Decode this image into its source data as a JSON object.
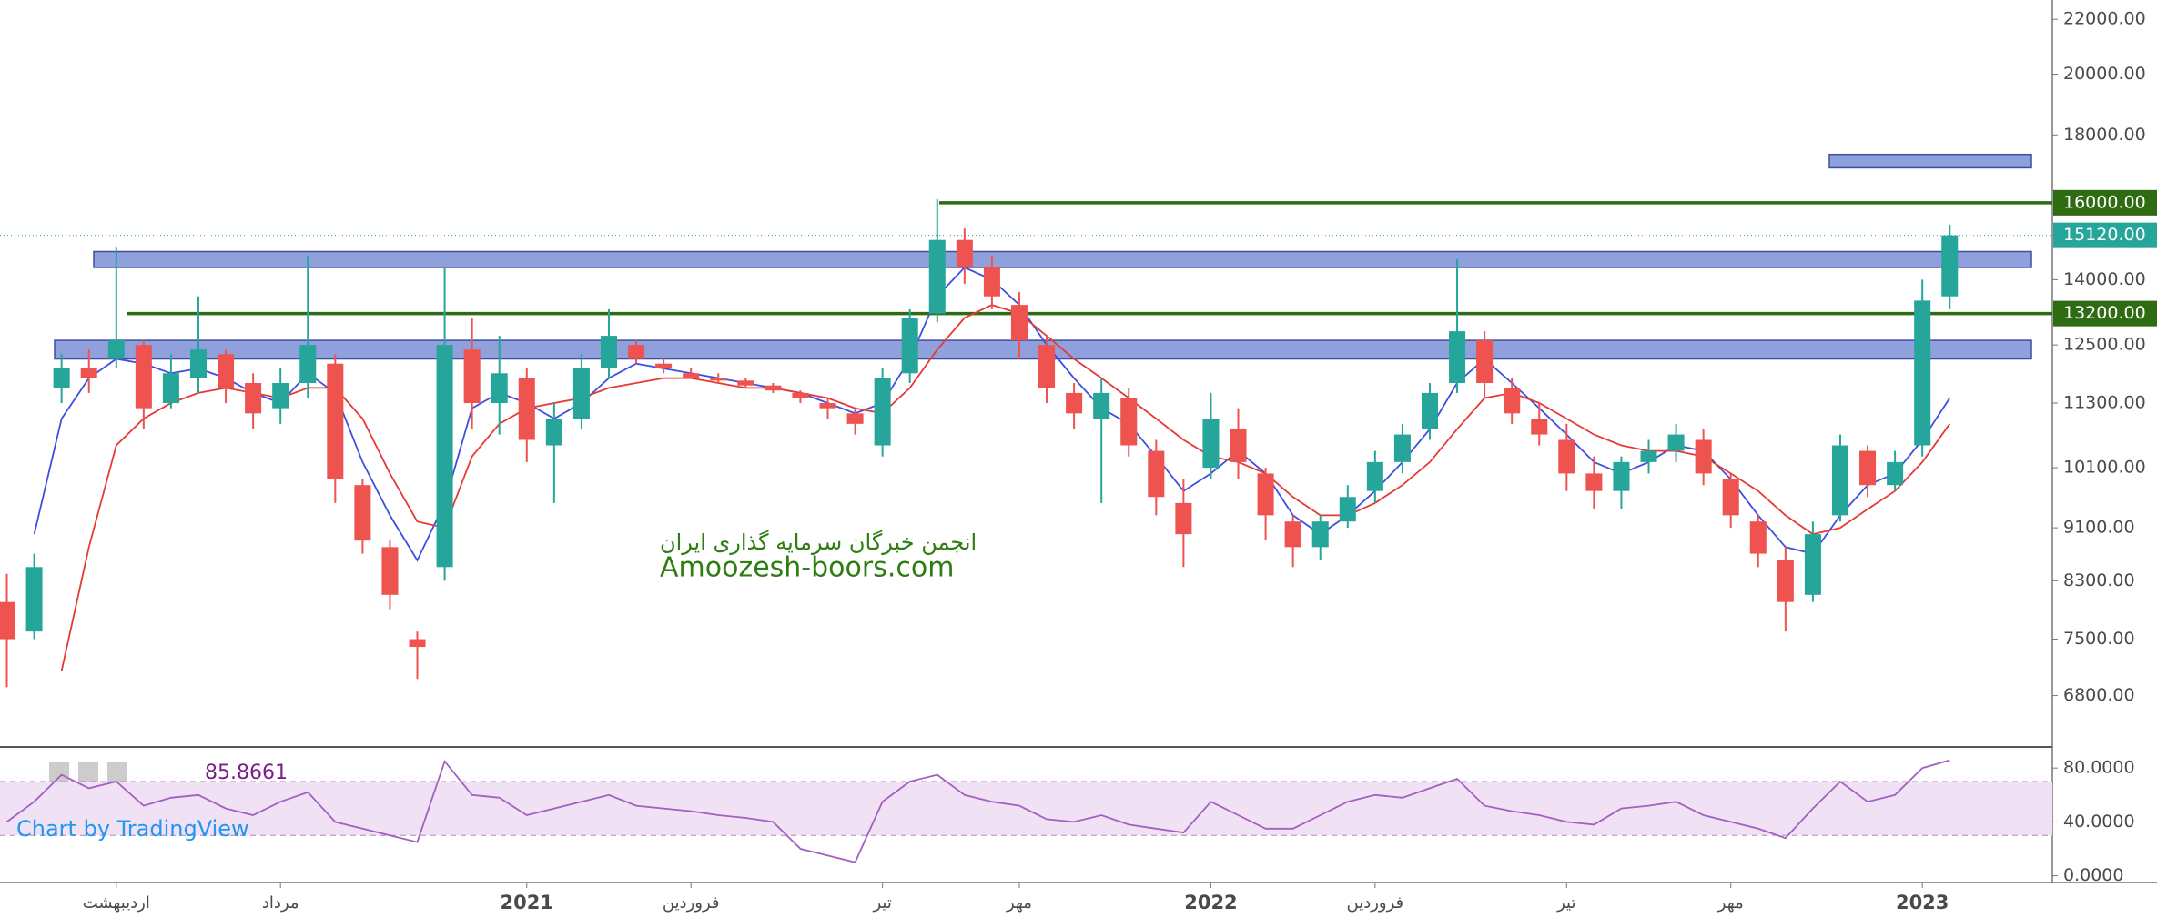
{
  "chart_data": [
    {
      "type": "candlestick",
      "categories": [
        null,
        null,
        null,
        null,
        "اردیبهشت",
        null,
        null,
        null,
        null,
        null,
        "مرداد",
        null,
        null,
        null,
        null,
        null,
        null,
        null,
        null,
        "2021",
        null,
        null,
        null,
        null,
        null,
        "فروردین",
        null,
        null,
        null,
        null,
        null,
        null,
        "تیر",
        null,
        null,
        null,
        null,
        "مهر",
        null,
        null,
        null,
        null,
        null,
        null,
        "2022",
        null,
        null,
        null,
        null,
        null,
        "فروردین",
        null,
        null,
        null,
        null,
        null,
        null,
        "تیر",
        null,
        null,
        null,
        null,
        null,
        "مهر",
        null,
        null,
        null,
        null,
        null,
        null,
        "2023",
        null,
        null,
        null,
        null
      ],
      "open": [
        8000,
        7600,
        11600,
        12000,
        12200,
        12500,
        11300,
        11800,
        12300,
        11700,
        11200,
        11700,
        12100,
        9800,
        8800,
        7500,
        8500,
        12400,
        11300,
        11800,
        10500,
        11000,
        12000,
        12500,
        12100,
        11900,
        11800,
        11750,
        11650,
        11500,
        11300,
        11100,
        10500,
        11900,
        13200,
        15000,
        14300,
        13400,
        12500,
        11500,
        11000,
        11400,
        10400,
        9500,
        10100,
        10800,
        10000,
        9200,
        8800,
        9200,
        9700,
        10200,
        10800,
        11700,
        12600,
        11600,
        11000,
        10600,
        10000,
        9700,
        10200,
        10400,
        10600,
        9900,
        9200,
        8600,
        8100,
        9300,
        10400,
        9800,
        10500,
        13600,
        null,
        null,
        null
      ],
      "high": [
        8400,
        8700,
        12300,
        12400,
        14800,
        12600,
        12300,
        13600,
        12400,
        11900,
        12000,
        14600,
        12300,
        9900,
        8900,
        7600,
        14300,
        13100,
        12700,
        12000,
        11300,
        12300,
        13300,
        12600,
        12200,
        12000,
        11900,
        11800,
        11700,
        11550,
        11400,
        11200,
        12000,
        13300,
        16100,
        15300,
        14600,
        13700,
        12700,
        11700,
        11800,
        11600,
        10600,
        9900,
        11500,
        11200,
        10100,
        9300,
        9300,
        9800,
        10400,
        10900,
        11700,
        14500,
        12800,
        11800,
        11300,
        10900,
        10300,
        10300,
        10600,
        10900,
        10800,
        10000,
        9300,
        8800,
        9200,
        10700,
        10500,
        10400,
        14000,
        15400,
        null,
        null,
        null
      ],
      "low": [
        6900,
        7500,
        11300,
        11500,
        12000,
        10800,
        11200,
        11500,
        11300,
        10800,
        10900,
        11400,
        9500,
        8700,
        7900,
        7000,
        8300,
        10800,
        10700,
        10200,
        9500,
        10800,
        11800,
        12100,
        11900,
        11800,
        11700,
        11600,
        11500,
        11300,
        11000,
        10700,
        10300,
        11700,
        13000,
        13900,
        13300,
        12200,
        11300,
        10800,
        9500,
        10300,
        9300,
        8500,
        9900,
        9900,
        8900,
        8500,
        8600,
        9100,
        9500,
        10000,
        10600,
        11500,
        11400,
        10900,
        10500,
        9700,
        9400,
        9400,
        10000,
        10200,
        9800,
        9100,
        8500,
        7600,
        8000,
        9200,
        9600,
        9700,
        10300,
        13300,
        null,
        null,
        null
      ],
      "close": [
        7500,
        8500,
        12000,
        11800,
        12600,
        11200,
        11900,
        12400,
        11600,
        11100,
        11700,
        12500,
        9900,
        8900,
        8100,
        7400,
        12500,
        11300,
        11900,
        10600,
        11000,
        12000,
        12700,
        12200,
        12000,
        11800,
        11750,
        11650,
        11550,
        11400,
        11200,
        10900,
        11800,
        13100,
        15000,
        14300,
        13600,
        12600,
        11600,
        11100,
        11500,
        10500,
        9600,
        9000,
        11000,
        10200,
        9300,
        8800,
        9200,
        9600,
        10200,
        10700,
        11500,
        12800,
        11700,
        11100,
        10700,
        10000,
        9700,
        10200,
        10400,
        10700,
        10000,
        9300,
        8700,
        8000,
        9000,
        10500,
        9800,
        10200,
        13500,
        15120,
        null,
        null,
        null
      ],
      "series": [
        {
          "color": "#3d4fe0",
          "values": [
            null,
            9000,
            11000,
            11800,
            12200,
            12100,
            11900,
            12000,
            11800,
            11500,
            11300,
            11900,
            11500,
            10200,
            9300,
            8600,
            9500,
            11200,
            11500,
            11300,
            11000,
            11300,
            11800,
            12100,
            12000,
            11900,
            11800,
            11700,
            11600,
            11500,
            11300,
            11100,
            11300,
            12200,
            13600,
            14300,
            14000,
            13400,
            12500,
            11800,
            11200,
            10900,
            10300,
            9700,
            10000,
            10400,
            10000,
            9300,
            9000,
            9300,
            9700,
            10200,
            10800,
            11700,
            12200,
            11700,
            11200,
            10700,
            10200,
            10000,
            10200,
            10500,
            10400,
            9900,
            9300,
            8800,
            8700,
            9300,
            9800,
            10000,
            10600,
            11400,
            null,
            null,
            null
          ]
        },
        {
          "color": "#e53935",
          "values": [
            null,
            null,
            7100,
            8800,
            10500,
            11000,
            11300,
            11500,
            11600,
            11500,
            11400,
            11600,
            11600,
            11000,
            10000,
            9200,
            9100,
            10300,
            10900,
            11200,
            11300,
            11400,
            11600,
            11700,
            11800,
            11800,
            11700,
            11600,
            11600,
            11500,
            11400,
            11200,
            11100,
            11600,
            12400,
            13100,
            13400,
            13200,
            12700,
            12200,
            11800,
            11400,
            11000,
            10600,
            10300,
            10200,
            10000,
            9600,
            9300,
            9300,
            9500,
            9800,
            10200,
            10800,
            11400,
            11500,
            11300,
            11000,
            10700,
            10500,
            10400,
            10400,
            10300,
            10000,
            9700,
            9300,
            9000,
            9100,
            9400,
            9700,
            10200,
            10900,
            null,
            null,
            null
          ]
        }
      ],
      "up_color": "#26a69a",
      "down_color": "#ef5350",
      "ylim": [
        6230,
        22750
      ],
      "log_scale": true,
      "yticks": [
        {
          "value": 22000,
          "label": "22000.00"
        },
        {
          "value": 20000,
          "label": "20000.00"
        },
        {
          "value": 18000,
          "label": "18000.00"
        },
        {
          "value": 14000,
          "label": "14000.00"
        },
        {
          "value": 12500,
          "label": "12500.00"
        },
        {
          "value": 11300,
          "label": "11300.00"
        },
        {
          "value": 10100,
          "label": "10100.00"
        },
        {
          "value": 9100,
          "label": "9100.00"
        },
        {
          "value": 8300,
          "label": "8300.00"
        },
        {
          "value": 7500,
          "label": "7500.00"
        },
        {
          "value": 6800,
          "label": "6800.00"
        }
      ],
      "levels": [
        {
          "value": 16000,
          "label": "16000.00",
          "color": "#2e6b12"
        },
        {
          "value": 13200,
          "label": "13200.00",
          "color": "#2e6b12"
        }
      ],
      "zones": [
        {
          "low": 12200,
          "high": 12600
        },
        {
          "low": 14300,
          "high": 14700
        },
        {
          "low": 17000,
          "high": 17400
        }
      ],
      "zone_color": "#7c8fd6",
      "last_price": {
        "value": 15120,
        "label": "15120.00",
        "color": "#26a69a"
      },
      "watermark": [
        "انجمن خبرگان سرمایه گذاری ایران",
        "Amoozesh-boors.com"
      ],
      "credit": "Chart by TradingView"
    },
    {
      "type": "line",
      "series": [
        {
          "color": "#a35fc2",
          "values": [
            40,
            55,
            75,
            65,
            70,
            52,
            58,
            60,
            50,
            45,
            55,
            62,
            40,
            35,
            30,
            25,
            85,
            60,
            58,
            45,
            50,
            55,
            60,
            52,
            50,
            48,
            45,
            43,
            40,
            20,
            15,
            10,
            55,
            70,
            75,
            60,
            55,
            52,
            42,
            40,
            45,
            38,
            35,
            32,
            55,
            45,
            35,
            35,
            45,
            55,
            60,
            58,
            65,
            72,
            52,
            48,
            45,
            40,
            38,
            50,
            52,
            55,
            45,
            40,
            35,
            28,
            50,
            70,
            55,
            60,
            80,
            85.8661,
            null,
            null,
            null
          ]
        }
      ],
      "ylim": [
        -5,
        95
      ],
      "yticks": [
        {
          "value": 80,
          "label": "80.0000"
        },
        {
          "value": 40,
          "label": "40.0000"
        },
        {
          "value": 0,
          "label": "0.0000"
        }
      ],
      "band": [
        30,
        70
      ]
    }
  ]
}
